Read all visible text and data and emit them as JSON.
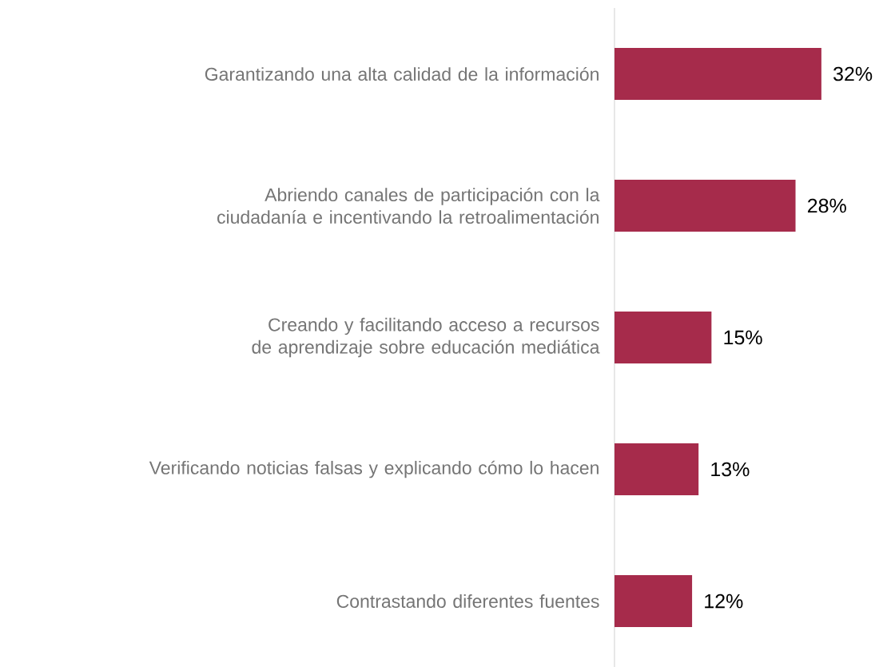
{
  "chart_data": {
    "type": "bar",
    "orientation": "horizontal",
    "categories": [
      "Garantizando una alta calidad de la información",
      "Abriendo canales de participación con la ciudadanía e incentivando la retroalimentación",
      "Creando y facilitando acceso a recursos de aprendizaje sobre educación mediática",
      "Verificando noticias falsas y explicando cómo lo hacen",
      "Contrastando diferentes fuentes"
    ],
    "values": [
      32,
      28,
      15,
      13,
      12
    ],
    "value_labels": [
      "32%",
      "28%",
      "15%",
      "13%",
      "12%"
    ],
    "color": "#a62b4b",
    "tick_labels": "y"
  }
}
